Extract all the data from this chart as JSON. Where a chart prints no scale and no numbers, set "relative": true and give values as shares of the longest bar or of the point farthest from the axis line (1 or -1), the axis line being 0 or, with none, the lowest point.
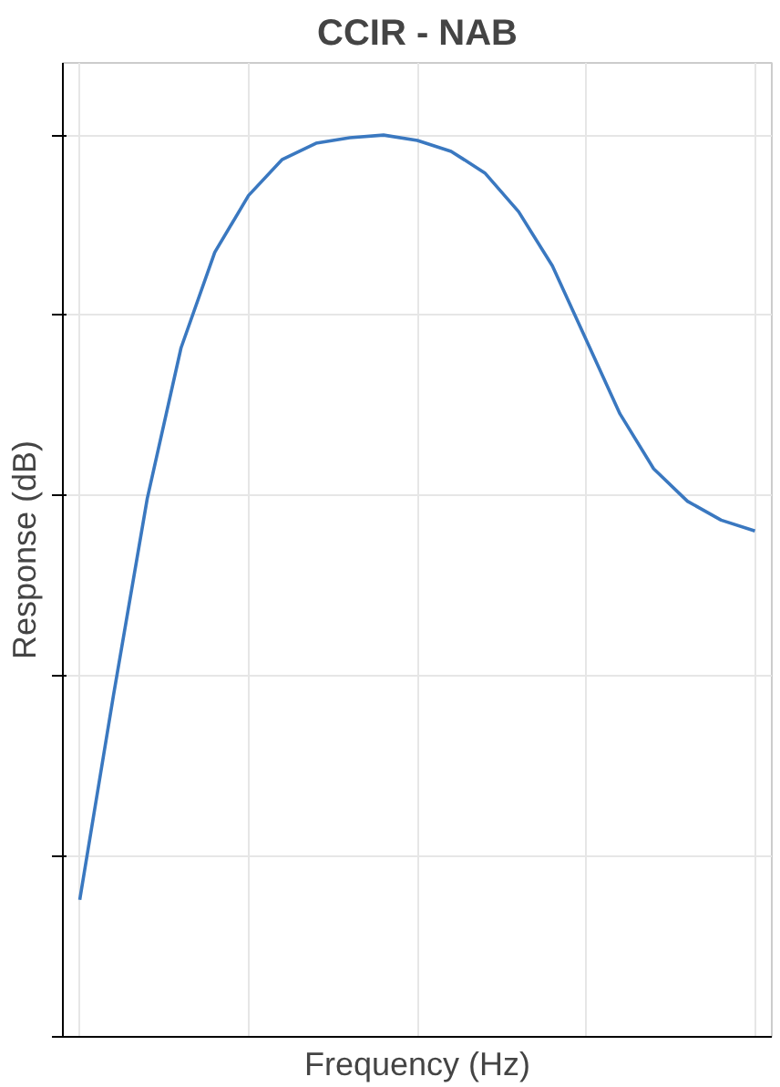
{
  "chart_data": {
    "type": "line",
    "title": "CCIR - NAB",
    "xlabel": "Frequency (Hz)",
    "ylabel": "Response (dB)",
    "categories": [
      null,
      null,
      null,
      null,
      null,
      null,
      null,
      null,
      null,
      null,
      null,
      null,
      null,
      null,
      null,
      null,
      null,
      null,
      null,
      null,
      null
    ],
    "series": [
      {
        "color": "#3a78c0",
        "values": [
          0.152,
          0.379,
          0.597,
          0.764,
          0.87,
          0.933,
          0.973,
          0.991,
          0.997,
          1.0,
          0.994,
          0.982,
          0.958,
          0.915,
          0.855,
          0.773,
          0.691,
          0.63,
          0.594,
          0.573,
          0.561
        ]
      }
    ],
    "relative": true,
    "grid": true,
    "marker": "none",
    "line_style": "solid"
  }
}
